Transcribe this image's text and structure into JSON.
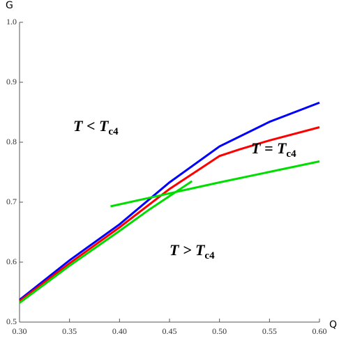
{
  "chart_data": {
    "type": "line",
    "x_label": "Q",
    "y_label": "G",
    "xlim": [
      0.3,
      0.6
    ],
    "ylim": [
      0.5,
      1.0
    ],
    "xticks": [
      {
        "value": 0.3,
        "label": "0.30"
      },
      0.35,
      {
        "value": 0.4,
        "label": "0.40"
      },
      0.45,
      {
        "value": 0.5,
        "label": "0.50"
      },
      0.55,
      {
        "value": 0.6,
        "label": "0.60"
      }
    ],
    "yticks": [
      0.5,
      0.6,
      0.7,
      0.8,
      0.9,
      {
        "value": 1.0,
        "label": "1.0"
      }
    ],
    "series": [
      {
        "color": "#0000ff",
        "x": [
          0.3,
          0.35,
          0.4,
          0.45,
          0.5,
          0.55,
          0.6
        ],
        "values": [
          0.537,
          0.603,
          0.663,
          0.733,
          0.793,
          0.834,
          0.866
        ]
      },
      {
        "color": "#ff0000",
        "x": [
          0.3,
          0.35,
          0.4,
          0.45,
          0.48,
          0.5,
          0.52,
          0.55,
          0.6
        ],
        "values": [
          0.535,
          0.598,
          0.658,
          0.722,
          0.755,
          0.777,
          0.788,
          0.803,
          0.825
        ]
      },
      {
        "color": "#00dd00",
        "x": [
          0.3,
          0.35,
          0.4,
          0.43,
          0.4725
        ],
        "values": [
          0.532,
          0.594,
          0.652,
          0.688,
          0.735
        ]
      },
      {
        "color": "#00dd00",
        "x": [
          0.391,
          0.44,
          0.5,
          0.6
        ],
        "values": [
          0.693,
          0.711,
          0.733,
          0.768
        ]
      }
    ],
    "annotations": [
      {
        "text": "T < T",
        "subscript": "c4"
      },
      {
        "text": "T = T",
        "subscript": "c4"
      },
      {
        "text": "T > T",
        "subscript": "c4"
      }
    ]
  }
}
